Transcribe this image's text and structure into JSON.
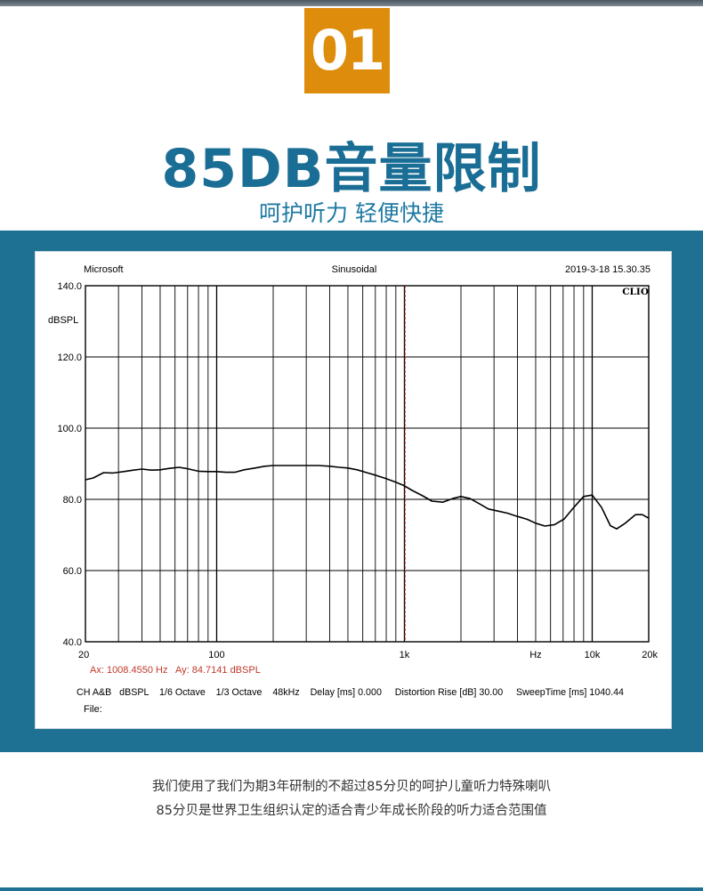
{
  "badge": {
    "number": "01"
  },
  "headline": "85DB音量限制",
  "subline": "呵护听力 轻便快捷",
  "description": [
    "我们使用了我们为期3年研制的不超过85分贝的呵护儿童听力特殊喇叭",
    "85分贝是世界卫生组织认定的适合青少年成长阶段的听力适合范围值"
  ],
  "colors": {
    "accent_orange": "#de8c0c",
    "brand_blue": "#1a6e95",
    "band_blue": "#1e7192",
    "cursor_red": "#c0392b",
    "curve": "#000000"
  },
  "chart_data": {
    "type": "line",
    "header_left": "Microsoft",
    "header_center": "Sinusoidal",
    "header_right": "2019-3-18  15.30.35",
    "brand_mark": "CLIO",
    "ylabel": "dBSPL",
    "xscale": "log",
    "xlim": [
      20,
      20000
    ],
    "ylim": [
      40,
      140
    ],
    "y_ticks": [
      "140.0",
      "120.0",
      "100.0",
      "80.0",
      "60.0",
      "40.0"
    ],
    "y_tick_values": [
      140,
      120,
      100,
      80,
      60,
      40
    ],
    "x_tick_labels": [
      {
        "value": 20,
        "label": "20"
      },
      {
        "value": 100,
        "label": "100"
      },
      {
        "value": 1000,
        "label": "1k"
      },
      {
        "value": 5000,
        "label": "Hz"
      },
      {
        "value": 10000,
        "label": "10k"
      },
      {
        "value": 20000,
        "label": "20k"
      }
    ],
    "grid": true,
    "cursor": {
      "x": 1008.455,
      "readout_x": "Ax: 1008.4550 Hz",
      "readout_y": "Ay: 84.7141 dBSPL"
    },
    "settings_line": "CH A&B   dBSPL    1/6 Octave    1/3 Octave    48kHz    Delay [ms] 0.000     Distortion Rise [dB] 30.00     SweepTime [ms] 1040.44",
    "file_label": "File:",
    "series": [
      {
        "x": [
          20,
          22,
          25,
          28,
          32,
          36,
          40,
          45,
          50,
          56,
          63,
          70,
          80,
          90,
          100,
          112,
          125,
          140,
          160,
          180,
          200,
          250,
          300,
          350,
          400,
          450,
          500,
          560,
          630,
          710,
          800,
          900,
          1000,
          1100,
          1250,
          1400,
          1600,
          1800,
          2000,
          2240,
          2500,
          2800,
          3150,
          3550,
          4000,
          4500,
          5000,
          5600,
          6300,
          7100,
          8000,
          9000,
          10000,
          11200,
          12500,
          13500,
          15000,
          17000,
          18500,
          20000
        ],
        "y": [
          85.5,
          86,
          87.5,
          87.4,
          87.8,
          88.2,
          88.5,
          88.2,
          88.3,
          88.7,
          89,
          88.6,
          87.9,
          87.8,
          87.8,
          87.6,
          87.6,
          88.3,
          88.8,
          89.3,
          89.5,
          89.5,
          89.5,
          89.5,
          89.3,
          89,
          88.8,
          88.3,
          87.5,
          86.7,
          85.8,
          84.8,
          83.8,
          82.5,
          81,
          79.5,
          79.2,
          80.2,
          80.8,
          80.2,
          78.8,
          77.3,
          76.7,
          76.1,
          75.2,
          74.4,
          73.3,
          72.5,
          72.9,
          74.5,
          77.8,
          80.8,
          81.2,
          77.8,
          72.6,
          71.7,
          73.3,
          75.7,
          75.7,
          74.7
        ]
      }
    ]
  }
}
